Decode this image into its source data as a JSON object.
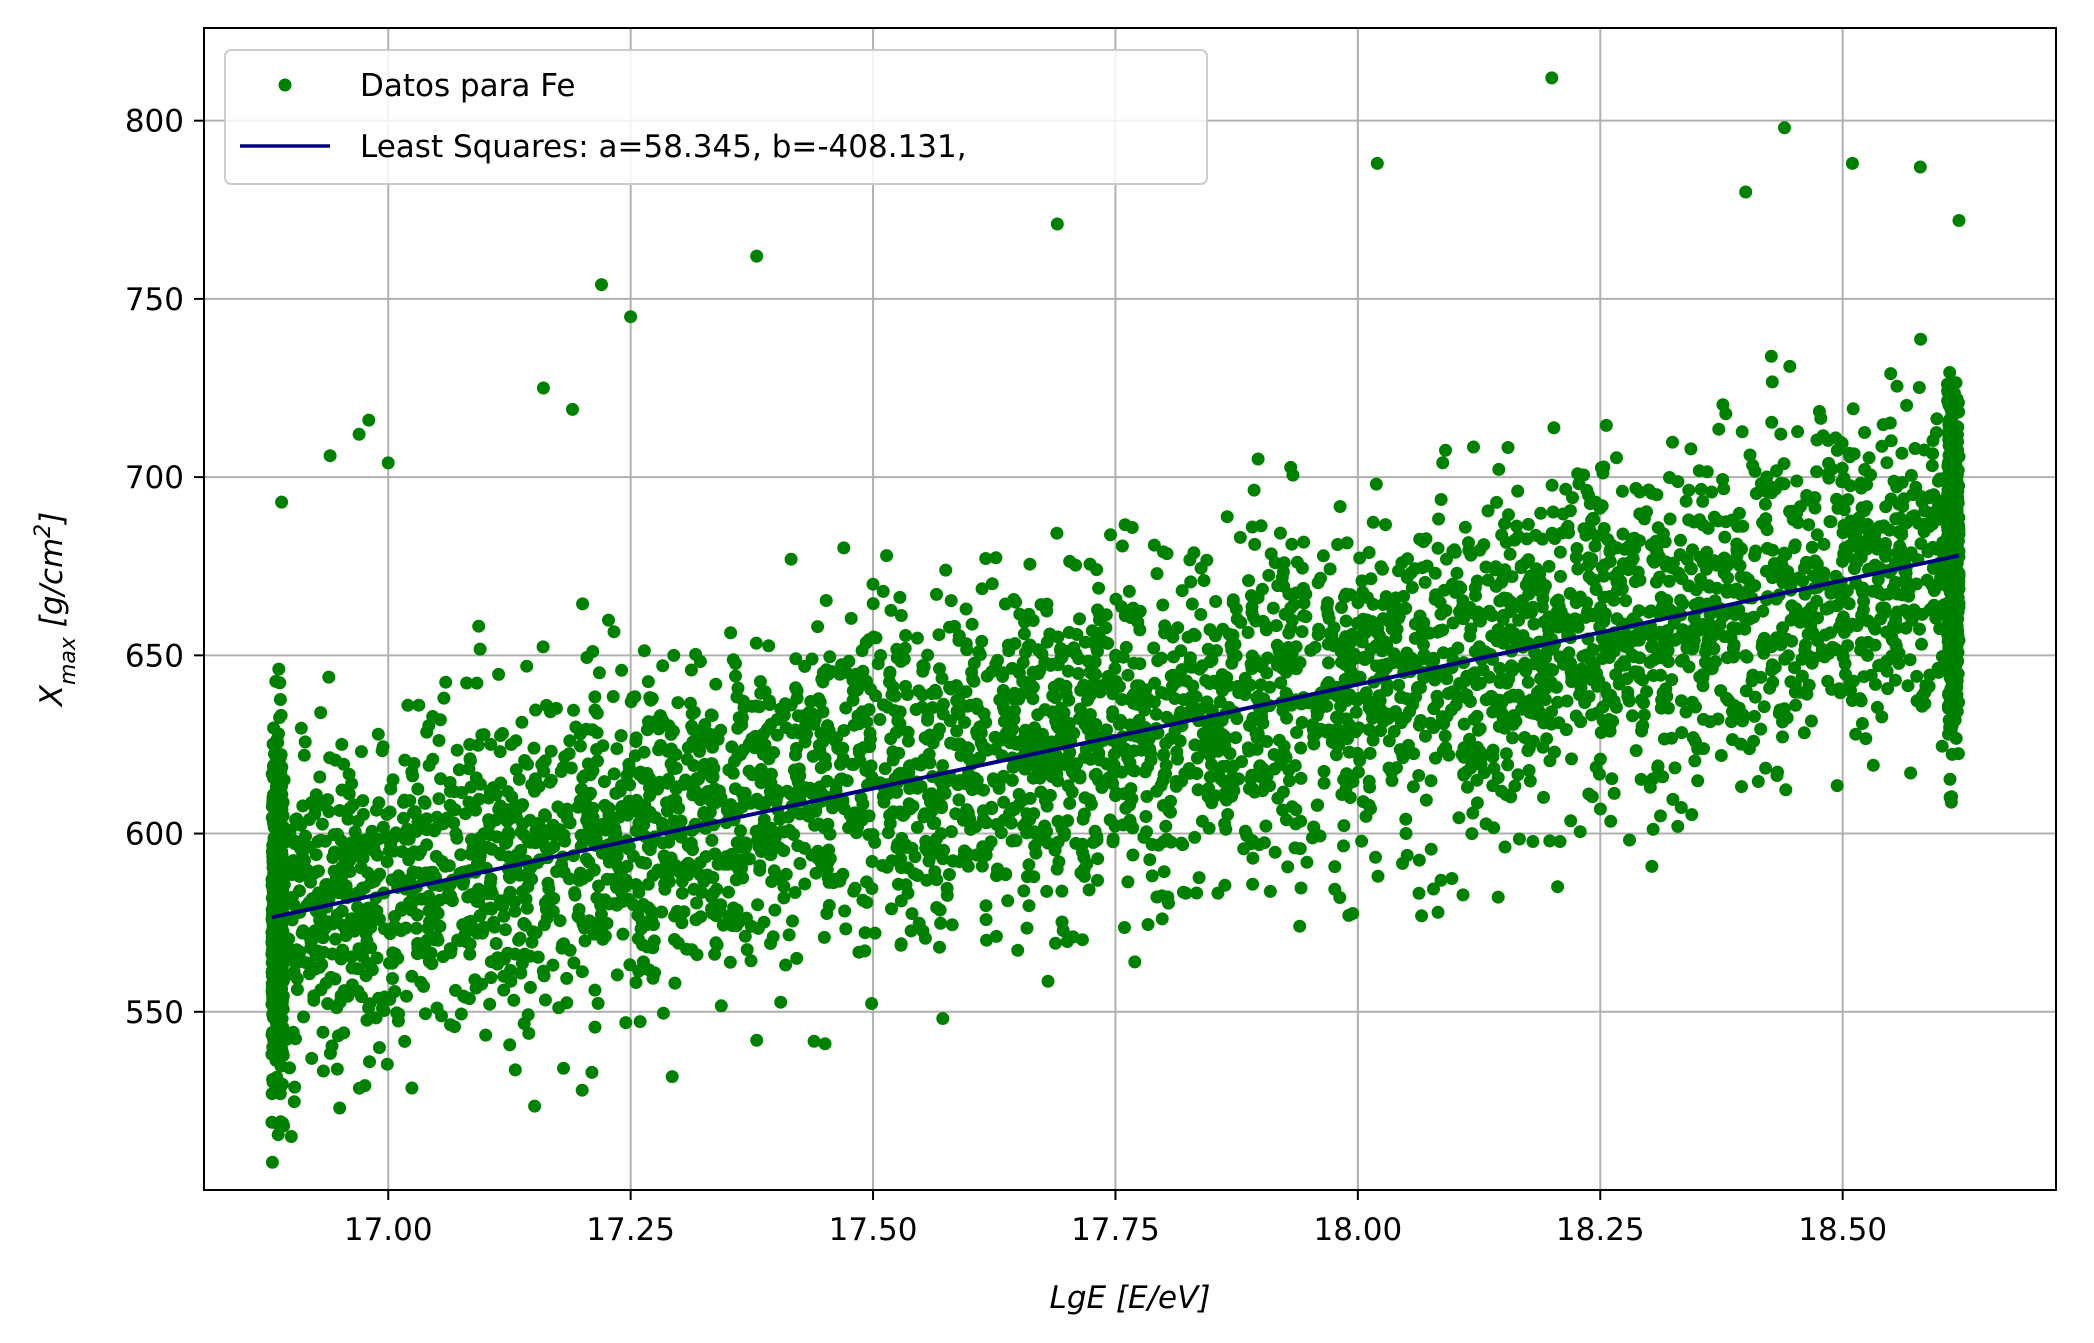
{
  "chart_data": {
    "type": "scatter",
    "xlabel": "LgE [E/eV]",
    "ylabel": "X_max [g/cm^2]",
    "xlim": [
      16.81,
      18.72
    ],
    "ylim": [
      500,
      826
    ],
    "xticks": [
      17.0,
      17.25,
      17.5,
      17.75,
      18.0,
      18.25,
      18.5
    ],
    "xtick_labels": [
      "17.00",
      "17.25",
      "17.50",
      "17.75",
      "18.00",
      "18.25",
      "18.50"
    ],
    "yticks": [
      550,
      600,
      650,
      700,
      750,
      800
    ],
    "ytick_labels": [
      "550",
      "600",
      "650",
      "700",
      "750",
      "800"
    ],
    "grid": true,
    "legend_position": "top-left",
    "series": [
      {
        "name": "Datos para Fe",
        "kind": "points",
        "color": "#008000",
        "x_range": [
          16.88,
          18.62
        ],
        "y_trend": {
          "slope": 58.345,
          "intercept": -408.131
        },
        "scatter_sd": 23,
        "outliers": [
          {
            "x": 16.89,
            "y": 693
          },
          {
            "x": 16.94,
            "y": 706
          },
          {
            "x": 16.97,
            "y": 712
          },
          {
            "x": 16.98,
            "y": 716
          },
          {
            "x": 17.0,
            "y": 704
          },
          {
            "x": 17.16,
            "y": 725
          },
          {
            "x": 17.19,
            "y": 719
          },
          {
            "x": 17.22,
            "y": 754
          },
          {
            "x": 17.25,
            "y": 745
          },
          {
            "x": 17.38,
            "y": 762
          },
          {
            "x": 17.69,
            "y": 771
          },
          {
            "x": 18.02,
            "y": 788
          },
          {
            "x": 18.2,
            "y": 812
          },
          {
            "x": 18.44,
            "y": 798
          },
          {
            "x": 18.51,
            "y": 788
          },
          {
            "x": 18.58,
            "y": 787
          },
          {
            "x": 18.62,
            "y": 772
          },
          {
            "x": 18.4,
            "y": 780
          },
          {
            "x": 16.88,
            "y": 519
          },
          {
            "x": 16.9,
            "y": 515
          },
          {
            "x": 16.95,
            "y": 523
          },
          {
            "x": 17.2,
            "y": 528
          },
          {
            "x": 17.21,
            "y": 533
          },
          {
            "x": 17.38,
            "y": 542
          },
          {
            "x": 17.77,
            "y": 564
          },
          {
            "x": 17.94,
            "y": 574
          },
          {
            "x": 18.33,
            "y": 602
          },
          {
            "x": 18.57,
            "y": 617
          }
        ]
      },
      {
        "name": "Least Squares:  a=58.345, b=-408.131,",
        "kind": "line",
        "color": "#000080",
        "a": 58.345,
        "b": -408.131,
        "x": [
          16.88,
          18.62
        ],
        "y": [
          576.5,
          678.0
        ]
      }
    ]
  }
}
